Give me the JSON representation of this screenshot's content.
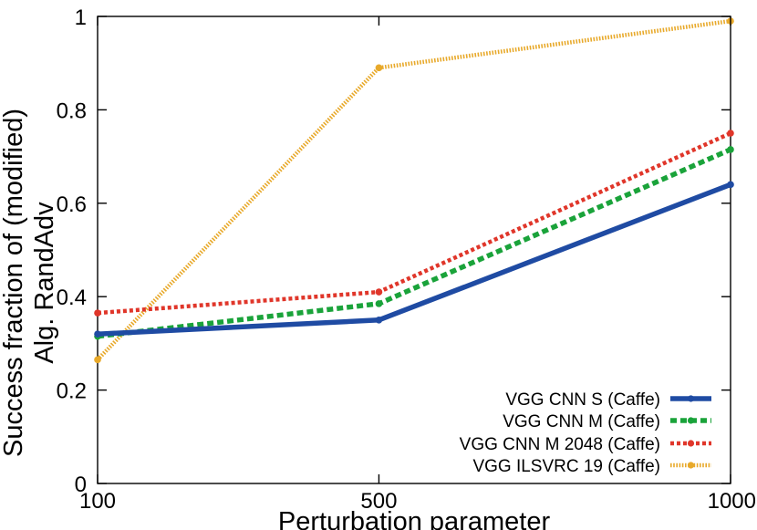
{
  "chart_data": {
    "type": "line",
    "title": "",
    "xlabel": "Perturbation parameter",
    "ylabel_lines": [
      "Success fraction of (modified)",
      "Alg. RandAdv"
    ],
    "x": [
      100,
      500,
      1000
    ],
    "x_tick_labels": [
      "100",
      "500",
      "1000"
    ],
    "ylim": [
      0,
      1
    ],
    "y_ticks": [
      0,
      0.2,
      0.4,
      0.6,
      0.8,
      1
    ],
    "y_tick_labels": [
      "0",
      "0.2",
      "0.4",
      "0.6",
      "0.8",
      "1"
    ],
    "grid": false,
    "legend_position": "bottom-right",
    "series": [
      {
        "name": "VGG CNN S  (Caffe)",
        "values": [
          0.32,
          0.35,
          0.64
        ],
        "color": "#1f4ba3",
        "style": "solid"
      },
      {
        "name": "VGG CNN M  (Caffe)",
        "values": [
          0.315,
          0.385,
          0.715
        ],
        "color": "#1aa33a",
        "style": "dashed"
      },
      {
        "name": "VGG CNN M 2048 (Caffe)",
        "values": [
          0.365,
          0.41,
          0.75
        ],
        "color": "#e0362a",
        "style": "dotted"
      },
      {
        "name": "VGG ILSVRC 19 (Caffe)",
        "values": [
          0.265,
          0.89,
          0.99
        ],
        "color": "#e8a92a",
        "style": "fine"
      }
    ]
  }
}
